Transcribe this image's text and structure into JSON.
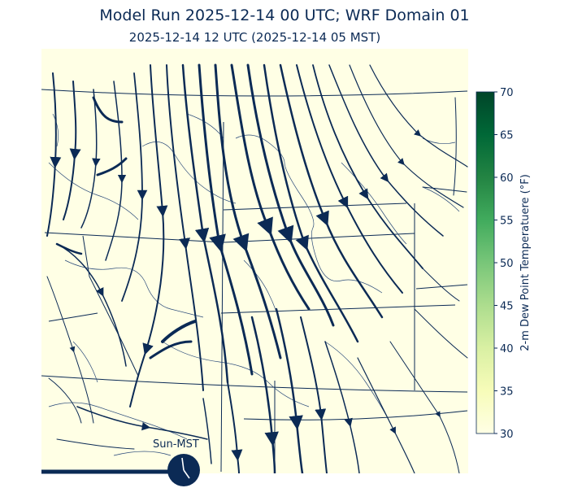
{
  "header": {
    "title": "Model Run 2025-12-14 00 UTC; WRF Domain 01",
    "subtitle": "2025-12-14 12 UTC  (2025-12-14 05 MST)"
  },
  "colorbar": {
    "label": "2-m Dew Point Temperatuere (°F)",
    "ticks": [
      "70",
      "65",
      "60",
      "55",
      "50",
      "45",
      "40",
      "35",
      "30"
    ],
    "colors": [
      "#00441b",
      "#006d2c",
      "#238b45",
      "#41ab5d",
      "#74c476",
      "#a1d99b",
      "#c7e9c0",
      "#e5f5e0",
      "#ffffe5"
    ]
  },
  "clock": {
    "label": "Sun-MST"
  },
  "map": {
    "background_color": "#ffffe5",
    "line_color": "#0b2a55"
  }
}
